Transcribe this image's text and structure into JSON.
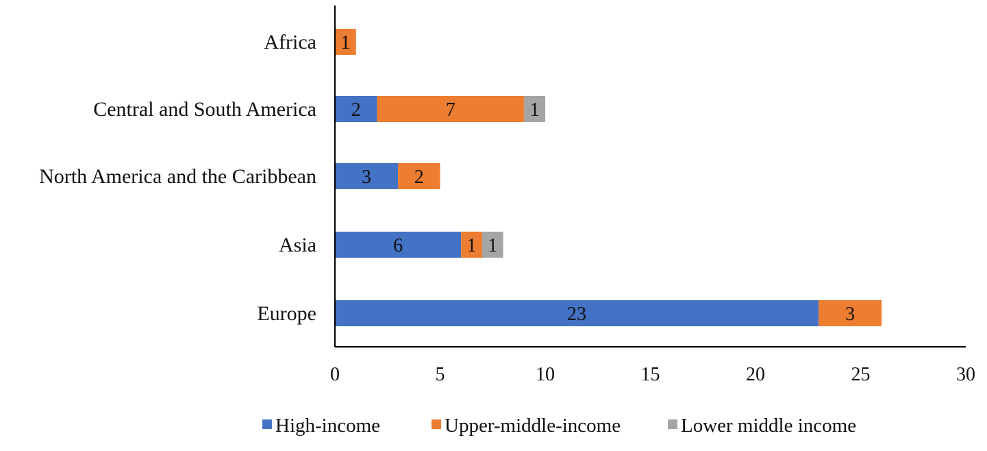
{
  "chart_data": {
    "type": "bar",
    "orientation": "horizontal",
    "stacked": true,
    "categories": [
      "Africa",
      "Central and South America",
      "North America and the Caribbean",
      "Asia",
      "Europe"
    ],
    "series": [
      {
        "name": "High-income",
        "color": "#4472C4",
        "values": [
          0,
          2,
          3,
          6,
          23
        ]
      },
      {
        "name": "Upper-middle-income",
        "color": "#ED7D31",
        "values": [
          1,
          7,
          2,
          1,
          3
        ]
      },
      {
        "name": "Lower middle income",
        "color": "#A5A5A5",
        "values": [
          0,
          1,
          0,
          1,
          0
        ]
      }
    ],
    "xlim": [
      0,
      30
    ],
    "xticks": [
      0,
      5,
      10,
      15,
      20,
      25,
      30
    ],
    "title": "",
    "xlabel": "",
    "ylabel": "",
    "grid": false,
    "legend_position": "bottom"
  }
}
